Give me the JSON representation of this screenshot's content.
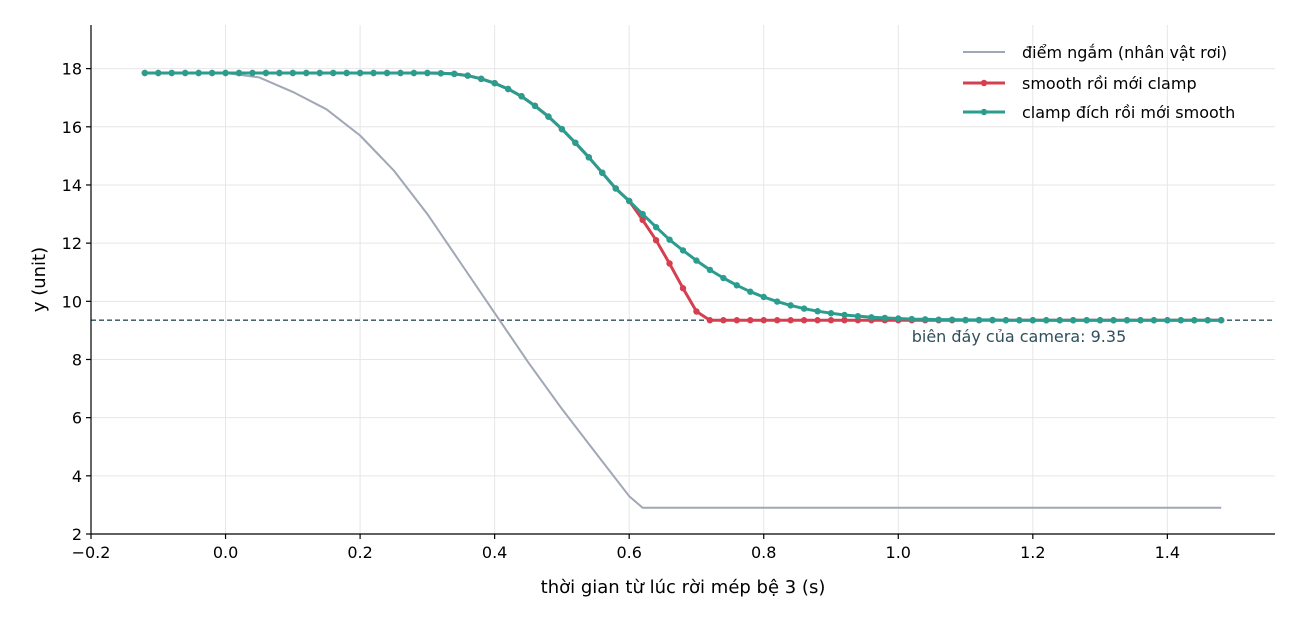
{
  "chart_data": {
    "type": "line",
    "title": "",
    "xlabel": "thời gian từ lúc rời mép bệ 3 (s)",
    "ylabel": "y (unit)",
    "xlim": [
      -0.2,
      1.56
    ],
    "ylim": [
      2,
      19.5
    ],
    "x_ticks": [
      -0.2,
      0.0,
      0.2,
      0.4,
      0.6,
      0.8,
      1.0,
      1.2,
      1.4
    ],
    "x_tick_labels": [
      "−0.2",
      "0.0",
      "0.2",
      "0.4",
      "0.6",
      "0.8",
      "1.0",
      "1.2",
      "1.4"
    ],
    "y_ticks": [
      2,
      4,
      6,
      8,
      10,
      12,
      14,
      16,
      18
    ],
    "y_tick_labels": [
      "2",
      "4",
      "6",
      "8",
      "10",
      "12",
      "14",
      "16",
      "18"
    ],
    "grid": true,
    "legend_position": "top-right",
    "reference_line": {
      "y": 9.35,
      "label": "biên đáy của camera: 9.35",
      "color": "#2f4f5a"
    },
    "series": [
      {
        "name": "điểm ngắm (nhân vật rơi)",
        "color": "#a0a7b5",
        "markers": false,
        "x": [
          -0.12,
          0.0,
          0.05,
          0.1,
          0.15,
          0.2,
          0.25,
          0.3,
          0.35,
          0.4,
          0.45,
          0.5,
          0.55,
          0.6,
          0.62,
          0.7,
          0.8,
          0.9,
          1.0,
          1.1,
          1.2,
          1.3,
          1.4,
          1.48
        ],
        "values": [
          17.85,
          17.85,
          17.7,
          17.2,
          16.6,
          15.7,
          14.5,
          13.0,
          11.3,
          9.6,
          7.9,
          6.3,
          4.8,
          3.3,
          2.9,
          2.9,
          2.9,
          2.9,
          2.9,
          2.9,
          2.9,
          2.9,
          2.9,
          2.9
        ]
      },
      {
        "name": "smooth rồi mới clamp",
        "color": "#d63f4f",
        "markers": true,
        "x": [
          -0.12,
          -0.1,
          -0.08,
          -0.06,
          -0.04,
          -0.02,
          0.0,
          0.02,
          0.04,
          0.06,
          0.08,
          0.1,
          0.12,
          0.14,
          0.16,
          0.18,
          0.2,
          0.22,
          0.24,
          0.26,
          0.28,
          0.3,
          0.32,
          0.34,
          0.36,
          0.38,
          0.4,
          0.42,
          0.44,
          0.46,
          0.48,
          0.5,
          0.52,
          0.54,
          0.56,
          0.58,
          0.6,
          0.62,
          0.64,
          0.66,
          0.68,
          0.7,
          0.72,
          0.74,
          0.76,
          0.78,
          0.8,
          0.82,
          0.84,
          0.86,
          0.88,
          0.9,
          0.92,
          0.94,
          0.96,
          0.98,
          1.0,
          1.02,
          1.04,
          1.06,
          1.08,
          1.1,
          1.12,
          1.14,
          1.16,
          1.18,
          1.2,
          1.22,
          1.24,
          1.26,
          1.28,
          1.3,
          1.32,
          1.34,
          1.36,
          1.38,
          1.4,
          1.42,
          1.44,
          1.46,
          1.48
        ],
        "values": [
          17.85,
          17.85,
          17.85,
          17.85,
          17.85,
          17.85,
          17.85,
          17.85,
          17.85,
          17.85,
          17.85,
          17.85,
          17.85,
          17.85,
          17.85,
          17.85,
          17.85,
          17.85,
          17.85,
          17.85,
          17.85,
          17.85,
          17.84,
          17.82,
          17.76,
          17.65,
          17.5,
          17.3,
          17.05,
          16.72,
          16.35,
          15.92,
          15.45,
          14.95,
          14.42,
          13.88,
          13.45,
          12.8,
          12.1,
          11.3,
          10.45,
          9.65,
          9.35,
          9.35,
          9.35,
          9.35,
          9.35,
          9.35,
          9.35,
          9.35,
          9.35,
          9.35,
          9.35,
          9.35,
          9.35,
          9.35,
          9.35,
          9.35,
          9.35,
          9.35,
          9.35,
          9.35,
          9.35,
          9.35,
          9.35,
          9.35,
          9.35,
          9.35,
          9.35,
          9.35,
          9.35,
          9.35,
          9.35,
          9.35,
          9.35,
          9.35,
          9.35,
          9.35,
          9.35,
          9.35,
          9.35
        ]
      },
      {
        "name": "clamp đích rồi mới smooth",
        "color": "#2a9d8f",
        "markers": true,
        "x": [
          -0.12,
          -0.1,
          -0.08,
          -0.06,
          -0.04,
          -0.02,
          0.0,
          0.02,
          0.04,
          0.06,
          0.08,
          0.1,
          0.12,
          0.14,
          0.16,
          0.18,
          0.2,
          0.22,
          0.24,
          0.26,
          0.28,
          0.3,
          0.32,
          0.34,
          0.36,
          0.38,
          0.4,
          0.42,
          0.44,
          0.46,
          0.48,
          0.5,
          0.52,
          0.54,
          0.56,
          0.58,
          0.6,
          0.62,
          0.64,
          0.66,
          0.68,
          0.7,
          0.72,
          0.74,
          0.76,
          0.78,
          0.8,
          0.82,
          0.84,
          0.86,
          0.88,
          0.9,
          0.92,
          0.94,
          0.96,
          0.98,
          1.0,
          1.02,
          1.04,
          1.06,
          1.08,
          1.1,
          1.12,
          1.14,
          1.16,
          1.18,
          1.2,
          1.22,
          1.24,
          1.26,
          1.28,
          1.3,
          1.32,
          1.34,
          1.36,
          1.38,
          1.4,
          1.42,
          1.44,
          1.46,
          1.48
        ],
        "values": [
          17.85,
          17.85,
          17.85,
          17.85,
          17.85,
          17.85,
          17.85,
          17.85,
          17.85,
          17.85,
          17.85,
          17.85,
          17.85,
          17.85,
          17.85,
          17.85,
          17.85,
          17.85,
          17.85,
          17.85,
          17.85,
          17.85,
          17.84,
          17.82,
          17.76,
          17.65,
          17.5,
          17.3,
          17.05,
          16.72,
          16.35,
          15.92,
          15.45,
          14.95,
          14.42,
          13.88,
          13.45,
          13.0,
          12.55,
          12.12,
          11.75,
          11.4,
          11.08,
          10.8,
          10.55,
          10.33,
          10.15,
          9.99,
          9.86,
          9.75,
          9.66,
          9.59,
          9.53,
          9.49,
          9.45,
          9.43,
          9.41,
          9.39,
          9.38,
          9.37,
          9.37,
          9.36,
          9.36,
          9.36,
          9.35,
          9.35,
          9.35,
          9.35,
          9.35,
          9.35,
          9.35,
          9.35,
          9.35,
          9.35,
          9.35,
          9.35,
          9.35,
          9.35,
          9.35,
          9.35,
          9.35
        ]
      }
    ]
  }
}
